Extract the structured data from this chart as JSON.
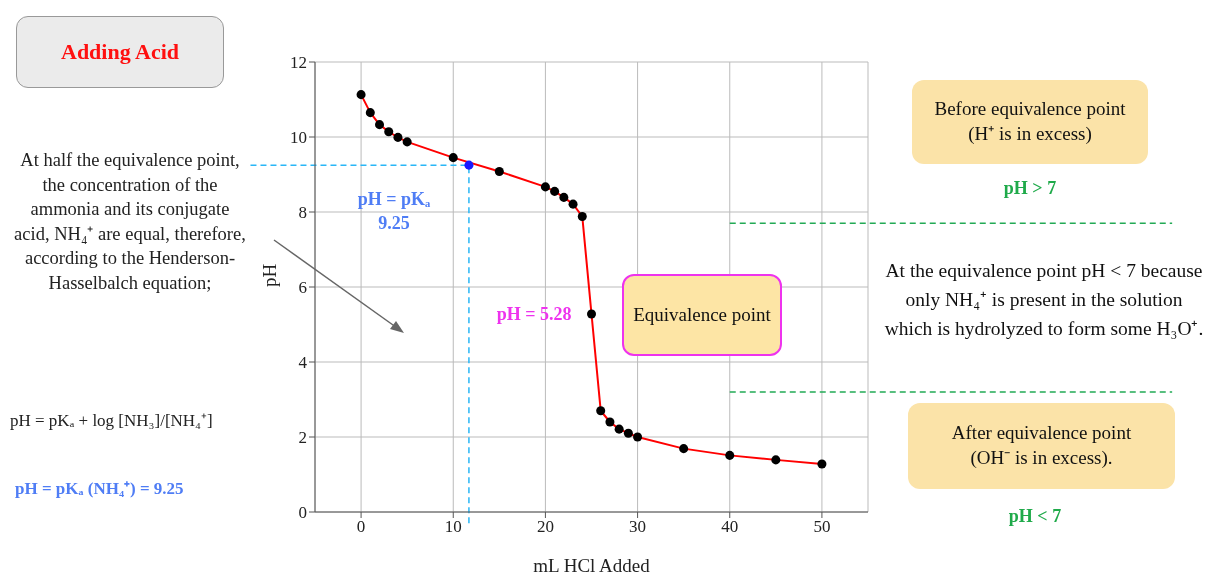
{
  "chart_data": {
    "type": "line",
    "title": "Adding Acid",
    "xlabel": "mL HCl Added",
    "ylabel": "pH",
    "xlim": [
      -5,
      55
    ],
    "xticks": [
      0,
      10,
      20,
      30,
      40,
      50
    ],
    "ylim": [
      0,
      12
    ],
    "yticks": [
      0,
      2,
      4,
      6,
      8,
      10,
      12
    ],
    "grid": true,
    "marker": "circle",
    "x": [
      0,
      1,
      2,
      3,
      4,
      5,
      10,
      15,
      20,
      21,
      22,
      23,
      24,
      25,
      26,
      27,
      28,
      29,
      30,
      35,
      40,
      45,
      50
    ],
    "series": [
      {
        "color": "#ff0000",
        "marker": "none",
        "values": [
          11.13,
          10.65,
          10.33,
          10.14,
          9.99,
          9.87,
          9.45,
          9.08,
          8.67,
          8.55,
          8.39,
          8.21,
          7.88,
          5.28,
          2.7,
          2.4,
          2.21,
          2.1,
          2.0,
          1.69,
          1.51,
          1.39,
          1.28
        ]
      },
      {
        "type": "scatter",
        "color": "#000000",
        "values": [
          11.13,
          10.65,
          10.33,
          10.14,
          9.99,
          9.87,
          9.45,
          9.08,
          8.67,
          8.55,
          8.39,
          8.21,
          7.88,
          5.28,
          2.7,
          2.4,
          2.21,
          2.1,
          2.0,
          1.69,
          1.51,
          1.39,
          1.28
        ]
      },
      {
        "type": "scatter",
        "color": "#1a1aff",
        "x": [
          11.7
        ],
        "values": [
          9.25
        ]
      }
    ],
    "ref_lines": [
      {
        "axis": "x",
        "value": 11.7,
        "color": "#29b6f6",
        "line_style": "dashed"
      },
      {
        "axis": "y",
        "value": 9.25,
        "color": "#29b6f6",
        "line_style": "dashed"
      },
      {
        "axis": "y",
        "value": 7.7,
        "color": "#22aa55",
        "line_style": "dashed"
      },
      {
        "axis": "y",
        "value": 3.2,
        "color": "#22aa55",
        "line_style": "dashed"
      }
    ],
    "annotations": [
      "At half the equivalence point, the concentration of the ammonia and its conjugate acid, NH₄⁺ are equal, therefore, according to the Henderson-Hasselbalch equation;",
      "pH = pKₐ + log [NH₃]/[NH₄⁺]",
      "pH = pKₐ (NH₄⁺) = 9.25",
      {
        "text": "pH = pKₐ\n9.25",
        "x": 11.7,
        "y": 9.25
      },
      {
        "text": "pH = 5.28",
        "x": 25,
        "y": 5.28
      },
      "Equivalence point",
      "Before equivalence point (H⁺ is in excess)",
      "pH > 7",
      "At the equivalence point pH < 7 because only NH₄⁺ is present in the solution which is hydrolyzed to form some H₃O⁺.",
      "After equivalence point (OH⁻ is in excess).",
      "pH < 7"
    ]
  }
}
